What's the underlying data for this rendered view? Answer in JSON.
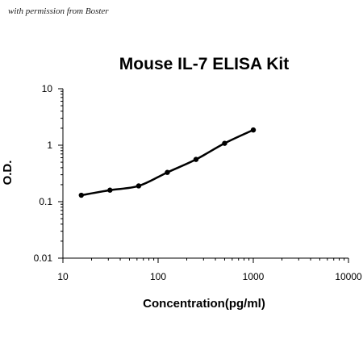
{
  "watermark": "with permission from Boster",
  "chart_data": {
    "type": "scatter",
    "title": "Mouse IL-7 ELISA Kit",
    "xlabel": "Concentration(pg/ml)",
    "ylabel": "O.D.",
    "xscale": "log",
    "yscale": "log",
    "xlim": [
      10,
      10000
    ],
    "ylim": [
      0.01,
      10
    ],
    "xticks": [
      "10",
      "100",
      "1000",
      "10000"
    ],
    "yticks": [
      "0.01",
      "0.1",
      "1",
      "10"
    ],
    "grid": false,
    "legend": "none",
    "series": [
      {
        "x": [
          15.6,
          31.2,
          62.5,
          125,
          250,
          500,
          1000
        ],
        "y": [
          0.13,
          0.16,
          0.19,
          0.33,
          0.56,
          1.08,
          1.86
        ],
        "line": "smooth fitted curve",
        "marker": "filled circle",
        "color": "#000000"
      }
    ]
  }
}
